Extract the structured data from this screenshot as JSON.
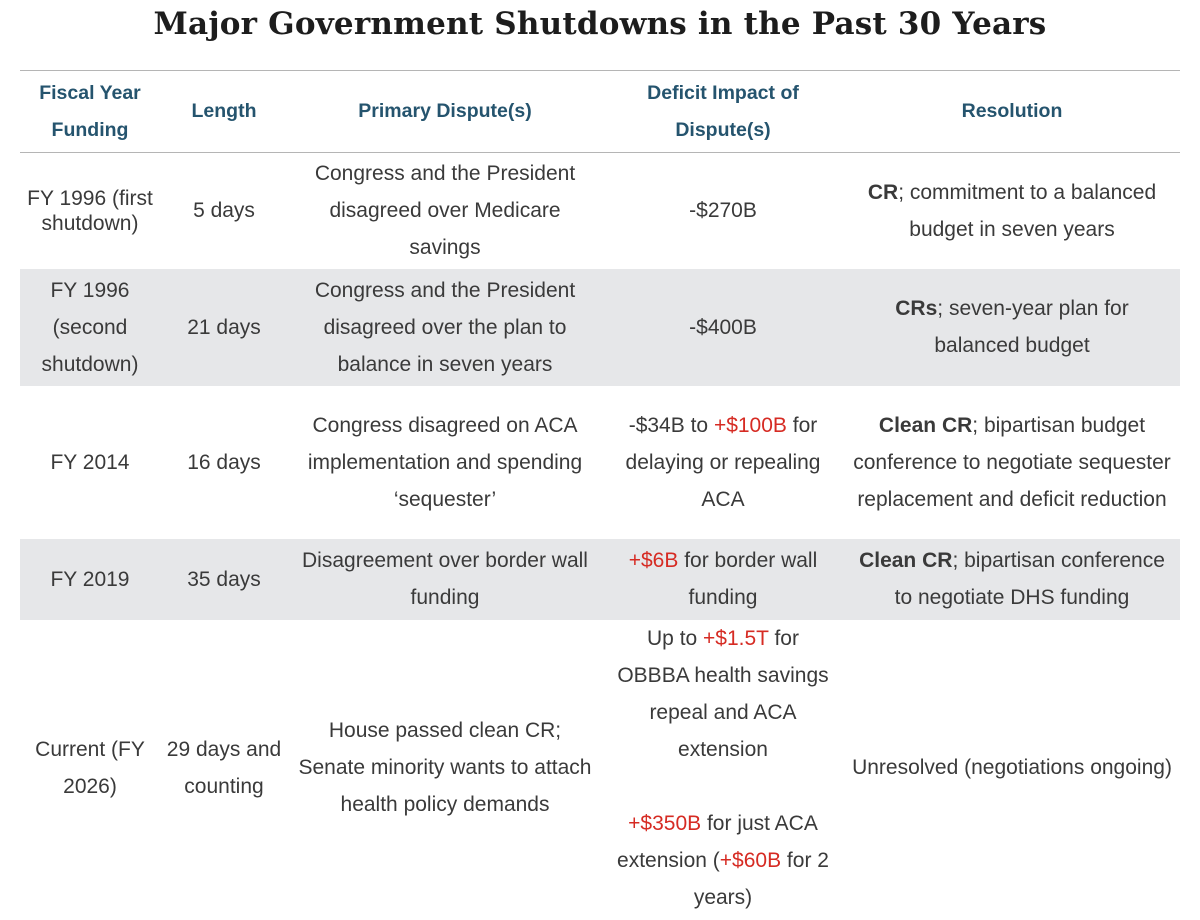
{
  "title": "Major Government Shutdowns in the Past 30 Years",
  "headers": {
    "fiscal_year": "Fiscal Year Funding",
    "length": "Length",
    "primary_dispute": "Primary Dispute(s)",
    "deficit_impact": "Deficit Impact of Dispute(s)",
    "resolution": "Resolution"
  },
  "rows": [
    {
      "fiscal_year": "FY 1996 (first shutdown)",
      "length": "5 days",
      "dispute": "Congress and the President disagreed over Medicare savings",
      "deficit": "-$270B",
      "resolution_bold": "CR",
      "resolution_rest": "; commitment to a balanced budget in seven years"
    },
    {
      "fiscal_year": "FY 1996 (second shutdown)",
      "length": "21 days",
      "dispute": "Congress and the President disagreed over the plan to balance in seven years",
      "deficit": "-$400B",
      "resolution_bold": "CRs",
      "resolution_rest": "; seven-year plan for balanced budget"
    },
    {
      "fiscal_year": "FY 2014",
      "length": "16 days",
      "dispute": "Congress disagreed on ACA implementation and spending ‘sequester’",
      "deficit_pre": "-$34B to ",
      "deficit_hl": "+$100B",
      "deficit_post": " for delaying or repealing ACA",
      "resolution_bold": "Clean CR",
      "resolution_rest": "; bipartisan budget conference to negotiate sequester replacement and deficit reduction"
    },
    {
      "fiscal_year": "FY 2019",
      "length": "35 days",
      "dispute": "Disagreement over border wall funding",
      "deficit_hl": "+$6B",
      "deficit_post": " for border wall funding",
      "resolution_bold": "Clean CR",
      "resolution_rest": "; bipartisan conference to negotiate DHS funding"
    },
    {
      "fiscal_year": "Current (FY 2026)",
      "length": "29 days and counting",
      "dispute": "House passed clean CR; Senate minority wants to attach health policy demands",
      "deficit_a_pre": "Up to ",
      "deficit_a_hl": "+$1.5T",
      "deficit_a_post": " for OBBBA health savings repeal and ACA extension",
      "deficit_b_hl": "+$350B",
      "deficit_b_mid": " for just ACA extension (",
      "deficit_b_hl2": "+$60B",
      "deficit_b_post": " for 2 years)",
      "resolution": "Unresolved (negotiations ongoing)"
    }
  ],
  "colors": {
    "header_text": "#25546e",
    "body_text": "#3a3a3a",
    "positive_impact": "#d62b23",
    "row_shade": "#e6e7e9"
  }
}
